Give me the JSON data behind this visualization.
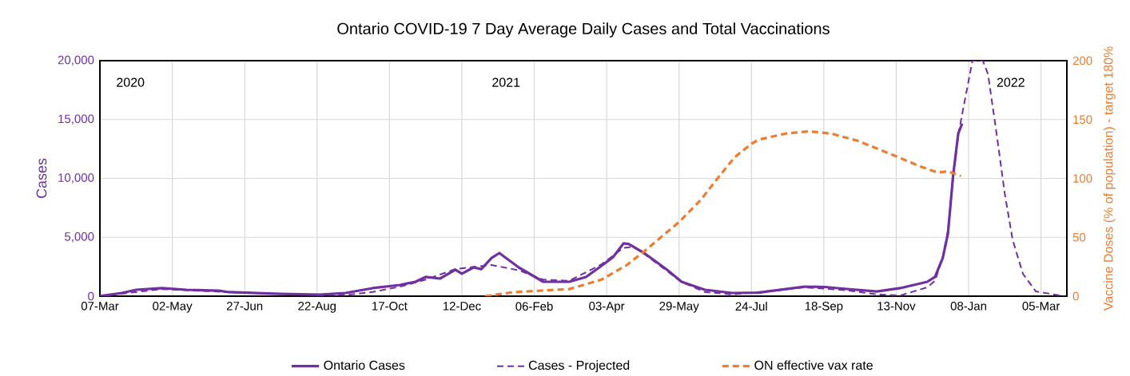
{
  "chart_data": {
    "type": "line",
    "title": "Ontario COVID-19 7 Day Average Daily Cases and Total Vaccinations",
    "ylabel": "Cases",
    "y2label": "Vaccine Doses (% of population) - target 180%",
    "annotations": [
      "2020",
      "2021",
      "2022"
    ],
    "xlim": [
      "2020-03-07",
      "2022-03-25"
    ],
    "xticks": [
      {
        "value": "2020-03-07",
        "label": "07-Mar"
      },
      {
        "value": "2020-05-02",
        "label": "02-May"
      },
      {
        "value": "2020-06-27",
        "label": "27-Jun"
      },
      {
        "value": "2020-08-22",
        "label": "22-Aug"
      },
      {
        "value": "2020-10-17",
        "label": "17-Oct"
      },
      {
        "value": "2020-12-12",
        "label": "12-Dec"
      },
      {
        "value": "2021-02-06",
        "label": "06-Feb"
      },
      {
        "value": "2021-04-03",
        "label": "03-Apr"
      },
      {
        "value": "2021-05-29",
        "label": "29-May"
      },
      {
        "value": "2021-07-24",
        "label": "24-Jul"
      },
      {
        "value": "2021-09-18",
        "label": "18-Sep"
      },
      {
        "value": "2021-11-13",
        "label": "13-Nov"
      },
      {
        "value": "2022-01-08",
        "label": "08-Jan"
      },
      {
        "value": "2022-03-05",
        "label": "05-Mar"
      }
    ],
    "ylim": [
      0,
      20000
    ],
    "yticks": [
      0,
      {
        "value": 5000,
        "label": "5,000"
      },
      {
        "value": 10000,
        "label": "10,000"
      },
      {
        "value": 15000,
        "label": "15,000"
      },
      {
        "value": 20000,
        "label": "20,000"
      }
    ],
    "y2lim": [
      0,
      200
    ],
    "y2ticks": [
      0,
      50,
      100,
      150,
      200
    ],
    "grid": true,
    "legend": "bottom",
    "marker": "none",
    "series": [
      {
        "name": "Ontario Cases",
        "color": "#7030a0",
        "line_style": "solid",
        "x": [
          "2020-03-07",
          "2020-03-24",
          "2020-04-04",
          "2020-04-24",
          "2020-05-13",
          "2020-06-07",
          "2020-06-15",
          "2020-07-24",
          "2020-08-24",
          "2020-09-13",
          "2020-10-04",
          "2020-10-25",
          "2020-11-06",
          "2020-11-14",
          "2020-11-25",
          "2020-12-07",
          "2020-12-12",
          "2020-12-21",
          "2020-12-27",
          "2021-01-04",
          "2021-01-10",
          "2021-01-25",
          "2021-02-13",
          "2021-03-05",
          "2021-03-18",
          "2021-03-30",
          "2021-04-08",
          "2021-04-16",
          "2021-04-20",
          "2021-05-02",
          "2021-05-19",
          "2021-05-31",
          "2021-06-18",
          "2021-07-09",
          "2021-07-30",
          "2021-08-05",
          "2021-09-03",
          "2021-09-19",
          "2021-10-06",
          "2021-10-29",
          "2021-11-16",
          "2021-12-07",
          "2021-12-13",
          "2021-12-19",
          "2021-12-23",
          "2021-12-27",
          "2021-12-31",
          "2022-01-03"
        ],
        "values": [
          0,
          270,
          540,
          680,
          540,
          470,
          340,
          200,
          130,
          270,
          680,
          950,
          1220,
          1630,
          1490,
          2240,
          1900,
          2440,
          2300,
          3250,
          3660,
          2440,
          1220,
          1220,
          1630,
          2580,
          3320,
          4480,
          4430,
          3660,
          2300,
          1220,
          540,
          270,
          300,
          400,
          810,
          780,
          610,
          400,
          680,
          1220,
          1630,
          3250,
          5290,
          10240,
          13830,
          14650
        ]
      },
      {
        "name": "Cases - Projected",
        "color": "#7030a0",
        "line_style": "dashed",
        "x": [
          "2020-03-07",
          "2020-04-24",
          "2020-06-15",
          "2020-08-24",
          "2020-09-13",
          "2020-10-04",
          "2020-10-25",
          "2020-11-14",
          "2020-12-07",
          "2021-01-04",
          "2021-01-25",
          "2021-02-13",
          "2021-03-05",
          "2021-03-30",
          "2021-04-16",
          "2021-04-24",
          "2021-05-02",
          "2021-05-31",
          "2021-06-18",
          "2021-07-09",
          "2021-08-05",
          "2021-09-03",
          "2021-10-06",
          "2021-10-29",
          "2021-11-16",
          "2021-12-07",
          "2021-12-13",
          "2021-12-19",
          "2021-12-23",
          "2021-12-27",
          "2021-12-31",
          "2022-01-03",
          "2022-01-11",
          "2022-01-19",
          "2022-01-23",
          "2022-01-29",
          "2022-02-05",
          "2022-02-11",
          "2022-02-19",
          "2022-03-01",
          "2022-03-23"
        ],
        "values": [
          0,
          600,
          340,
          100,
          100,
          350,
          800,
          1400,
          2300,
          2650,
          2200,
          1400,
          1300,
          2700,
          4100,
          4200,
          3600,
          1200,
          350,
          150,
          400,
          750,
          500,
          150,
          50,
          750,
          1300,
          3300,
          5600,
          10000,
          13700,
          15460,
          20000,
          20000,
          18850,
          14300,
          8680,
          4810,
          1900,
          400,
          0
        ]
      },
      {
        "name": "ON effective vax rate",
        "color": "#ed7d31",
        "line_style": "dashed",
        "axis": "y2",
        "x": [
          "2020-12-30",
          "2021-01-21",
          "2021-03-05",
          "2021-03-30",
          "2021-04-18",
          "2021-05-02",
          "2021-05-29",
          "2021-06-15",
          "2021-06-27",
          "2021-07-11",
          "2021-07-24",
          "2021-07-30",
          "2021-08-19",
          "2021-09-07",
          "2021-09-24",
          "2021-10-14",
          "2021-11-08",
          "2021-12-02",
          "2021-12-15",
          "2021-12-23",
          "2022-01-02"
        ],
        "values": [
          0,
          3.4,
          6,
          14,
          26,
          38,
          63,
          82,
          99,
          118,
          129.5,
          133,
          138,
          140,
          138,
          132,
          121,
          110,
          105,
          106,
          102
        ]
      }
    ]
  }
}
